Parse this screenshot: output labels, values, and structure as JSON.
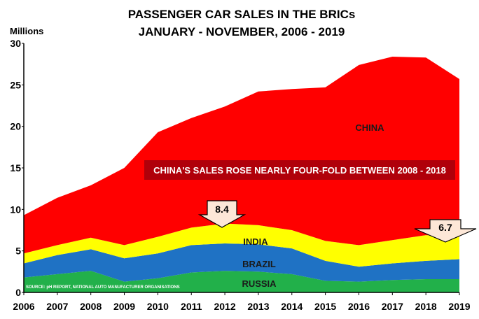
{
  "chart_data": {
    "type": "area",
    "title": "PASSENGER CAR SALES IN THE BRICs",
    "subtitle": "JANUARY - NOVEMBER, 2006 - 2019",
    "ylabel": "Millions",
    "ylim": [
      0,
      30
    ],
    "yticks": [
      "0",
      "5",
      "10",
      "15",
      "20",
      "25",
      "30"
    ],
    "x": [
      "2006",
      "2007",
      "2008",
      "2009",
      "2010",
      "2011",
      "2012",
      "2013",
      "2014",
      "2015",
      "2016",
      "2017",
      "2018",
      "2019"
    ],
    "stacked": true,
    "series": [
      {
        "name": "RUSSIA",
        "color": "#22b04a",
        "values": [
          1.8,
          2.2,
          2.6,
          1.3,
          1.7,
          2.4,
          2.6,
          2.5,
          2.2,
          1.4,
          1.3,
          1.5,
          1.6,
          1.6
        ]
      },
      {
        "name": "BRAZIL",
        "color": "#1f72c4",
        "values": [
          1.7,
          2.3,
          2.6,
          2.8,
          3.0,
          3.3,
          3.3,
          3.3,
          3.1,
          2.4,
          1.8,
          2.0,
          2.2,
          2.4
        ]
      },
      {
        "name": "INDIA",
        "color": "#ffff00",
        "values": [
          1.2,
          1.2,
          1.4,
          1.6,
          2.0,
          2.1,
          2.4,
          2.3,
          2.2,
          2.4,
          2.6,
          2.8,
          3.1,
          2.7
        ]
      },
      {
        "name": "CHINA",
        "color": "#ff0000",
        "values": [
          4.6,
          5.7,
          6.3,
          9.3,
          12.6,
          13.2,
          14.1,
          16.1,
          17.0,
          18.5,
          21.7,
          22.1,
          21.4,
          19.0
        ]
      }
    ],
    "annotations": [
      {
        "text": "CHINA'S SALES ROSE NEARLY FOUR-FOLD BETWEEN 2008 - 2018"
      },
      {
        "text": "8.4",
        "x": "2012"
      },
      {
        "text": "6.7",
        "x": "2019"
      }
    ],
    "source": "SOURCE: pH REPORT, NATIONAL AUTO MANUFACTURER ORGANISATIONS",
    "grid": false
  }
}
